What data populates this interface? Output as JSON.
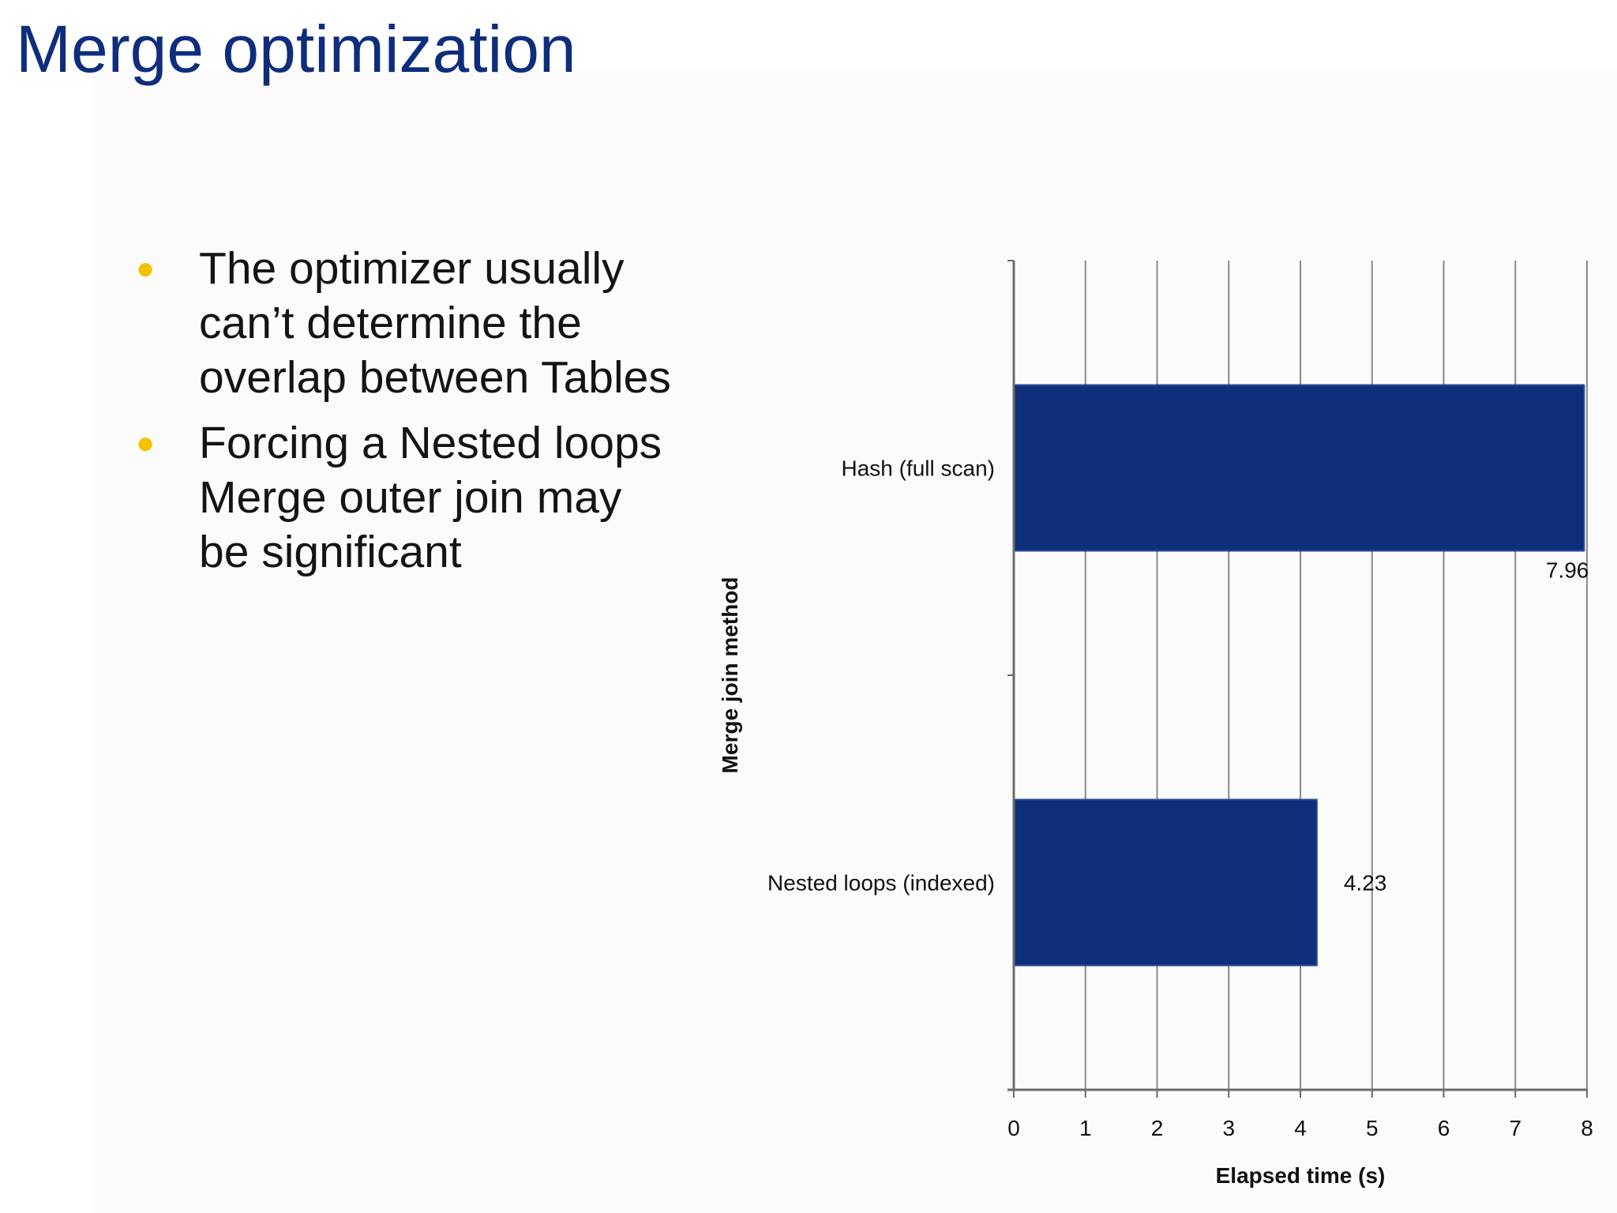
{
  "slide": {
    "title": "Merge optimization",
    "bullets": [
      "The optimizer usually can’t determine the overlap between Tables",
      "Forcing a Nested loops Merge outer join may be significant"
    ]
  },
  "colors": {
    "title": "#0f2d7d",
    "bar": "#0e2f7a",
    "bullet_marker": "#f2c200",
    "gridline": "#8a8a8a"
  },
  "chart_data": {
    "type": "bar",
    "orientation": "horizontal",
    "categories": [
      "Hash (full scan)",
      "Nested loops (indexed)"
    ],
    "values": [
      7.96,
      4.23
    ],
    "data_labels": [
      "7.96",
      "4.23"
    ],
    "xlabel": "Elapsed time (s)",
    "ylabel": "Merge join method",
    "xlim": [
      0,
      8
    ],
    "xticks": [
      "0",
      "1",
      "2",
      "3",
      "4",
      "5",
      "6",
      "7",
      "8"
    ],
    "grid": true,
    "legend": "none"
  }
}
